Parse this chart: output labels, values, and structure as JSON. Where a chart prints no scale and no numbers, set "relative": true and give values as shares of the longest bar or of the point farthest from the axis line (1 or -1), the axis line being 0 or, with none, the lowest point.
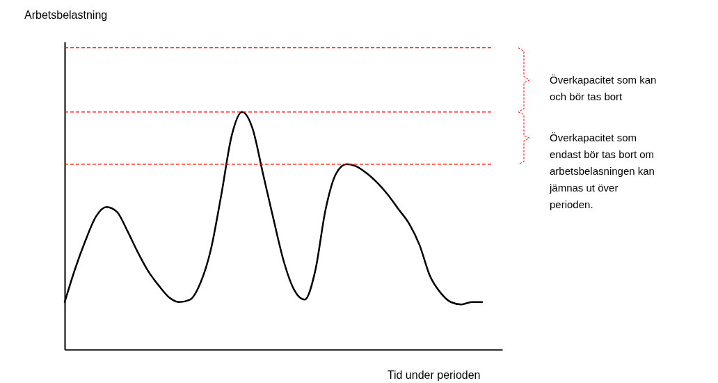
{
  "chart_data": {
    "type": "line",
    "relative": true,
    "xlabel": "Tid under perioden",
    "categories": [
      null,
      null,
      null,
      null,
      null,
      null,
      null,
      null,
      null,
      null,
      null,
      null,
      null,
      null,
      null,
      null,
      null,
      null,
      null,
      null,
      null,
      null,
      null,
      null,
      null,
      null,
      null,
      null,
      null,
      null,
      null,
      null,
      null,
      null,
      null,
      null,
      null,
      null,
      null,
      null,
      null
    ],
    "series": [
      {
        "color": "#000000",
        "values": [
          0.2,
          0.34,
          0.46,
          0.56,
          0.6,
          0.58,
          0.5,
          0.41,
          0.33,
          0.27,
          0.22,
          0.2,
          0.21,
          0.28,
          0.42,
          0.65,
          0.9,
          1,
          0.93,
          0.74,
          0.55,
          0.37,
          0.25,
          0.21,
          0.33,
          0.59,
          0.74,
          0.78,
          0.77,
          0.74,
          0.7,
          0.65,
          0.59,
          0.53,
          0.44,
          0.31,
          0.24,
          0.2,
          0.19,
          0.2,
          0.2
        ]
      }
    ],
    "ref_lines": [
      {
        "axis": "y",
        "value": 1.27,
        "color": "#ff0000",
        "line_style": "dashed"
      },
      {
        "axis": "y",
        "value": 1.0,
        "color": "#ff0000",
        "line_style": "dashed"
      },
      {
        "axis": "y",
        "value": 0.78,
        "color": "#ff0000",
        "line_style": "dashed"
      }
    ],
    "annotations": [
      "Arbetsbelastning",
      "Överkapacitet som kan\noch bör tas bort",
      "Överkapacitet som\nendast bör tas bort om\narbetsbelasningen kan\njämnas ut över\nperioden."
    ],
    "grid": false,
    "marker": "none",
    "line_style": "solid"
  }
}
